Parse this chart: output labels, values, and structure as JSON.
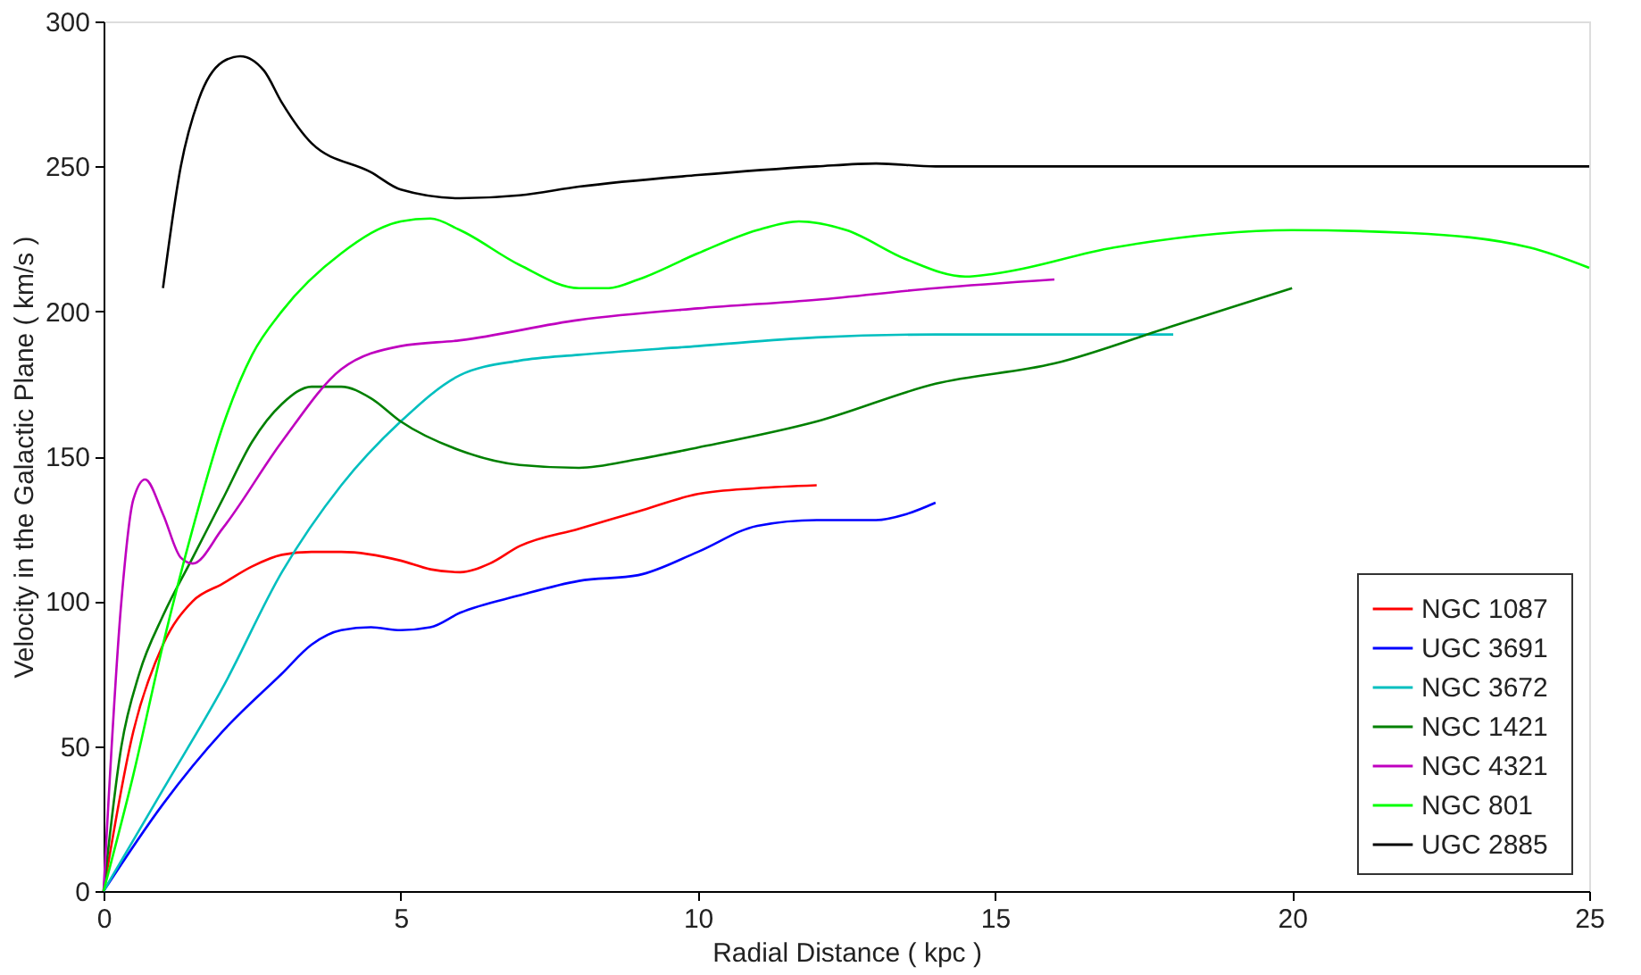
{
  "chart_data": {
    "type": "line",
    "xlabel": "Radial Distance ( kpc )",
    "ylabel": "Velocity in the Galactic Plane ( km/s )",
    "xlim": [
      0,
      25
    ],
    "xticks": [
      0,
      5,
      10,
      15,
      20,
      25
    ],
    "ylim": [
      0,
      300
    ],
    "yticks": [
      0,
      50,
      100,
      150,
      200,
      250,
      300
    ],
    "grid": false,
    "legend": "bottom right",
    "marker": "none",
    "line_style": "solid",
    "series": [
      {
        "name": "NGC  1087",
        "color": "#ff0000",
        "x": [
          0,
          0.5,
          1,
          1.5,
          2,
          2.5,
          3,
          3.5,
          4,
          5,
          5.5,
          6,
          6.5,
          7,
          8,
          9,
          10,
          11,
          12
        ],
        "values": [
          0,
          55,
          85,
          100,
          106,
          112,
          116,
          117,
          117,
          114,
          111,
          110,
          113,
          119,
          125,
          131,
          137,
          139,
          140
        ]
      },
      {
        "name": "UGC  3691",
        "color": "#0000ff",
        "x": [
          0,
          1,
          2,
          3,
          3.5,
          4,
          4.5,
          5,
          5.5,
          6,
          7,
          8,
          9,
          10,
          11,
          12,
          13,
          13.5,
          14
        ],
        "values": [
          0,
          30,
          55,
          75,
          85,
          90,
          91,
          90,
          91,
          96,
          102,
          107,
          109,
          117,
          126,
          128,
          128,
          130,
          134
        ]
      },
      {
        "name": "NGC  3672",
        "color": "#00bfbf",
        "x": [
          0,
          1,
          2,
          3,
          4,
          5,
          6,
          7,
          8,
          10,
          12,
          14,
          18
        ],
        "values": [
          0,
          35,
          70,
          110,
          140,
          162,
          178,
          183,
          185,
          188,
          191,
          192,
          192
        ]
      },
      {
        "name": "NGC  1421",
        "color": "#008000",
        "x": [
          0,
          0.3,
          0.6,
          1,
          1.5,
          2,
          2.5,
          3,
          3.5,
          4,
          4.5,
          5,
          6,
          7,
          8,
          9,
          10,
          12,
          14,
          16,
          18,
          20
        ],
        "values": [
          0,
          50,
          75,
          95,
          115,
          135,
          155,
          168,
          174,
          174,
          170,
          162,
          152,
          147,
          146,
          149,
          153,
          162,
          175,
          182,
          195,
          208
        ]
      },
      {
        "name": "NGC  4321",
        "color": "#bf00bf",
        "x": [
          0,
          0.3,
          0.5,
          0.7,
          1,
          1.3,
          1.5,
          2,
          3,
          4,
          5,
          6,
          8,
          10,
          12,
          14,
          16
        ],
        "values": [
          0,
          100,
          135,
          142,
          130,
          115,
          113,
          125,
          155,
          180,
          188,
          190,
          197,
          201,
          204,
          208,
          211
        ]
      },
      {
        "name": "NGC   801",
        "color": "#00ff00",
        "x": [
          0,
          0.5,
          1,
          1.5,
          2,
          2.5,
          3,
          4,
          5,
          5.5,
          6,
          7,
          8,
          8.5,
          9,
          10,
          11,
          11.7,
          12.5,
          13.5,
          14.5,
          15,
          17,
          20,
          22,
          24,
          25
        ],
        "values": [
          0,
          40,
          85,
          125,
          160,
          185,
          200,
          220,
          231,
          232,
          228,
          216,
          208,
          208,
          211,
          220,
          228,
          231,
          228,
          218,
          212,
          213,
          222,
          228,
          227,
          222,
          215
        ]
      },
      {
        "name": "UGC  2885",
        "color": "#000000",
        "x": [
          1,
          1.3,
          1.6,
          2,
          2.3,
          2.7,
          3,
          3.5,
          4.5,
          5,
          6,
          7,
          8,
          10,
          12,
          13,
          14,
          25
        ],
        "values": [
          208,
          250,
          273,
          286,
          288,
          283,
          272,
          258,
          248,
          242,
          239,
          240,
          243,
          247,
          250,
          251,
          250,
          250
        ]
      }
    ]
  }
}
